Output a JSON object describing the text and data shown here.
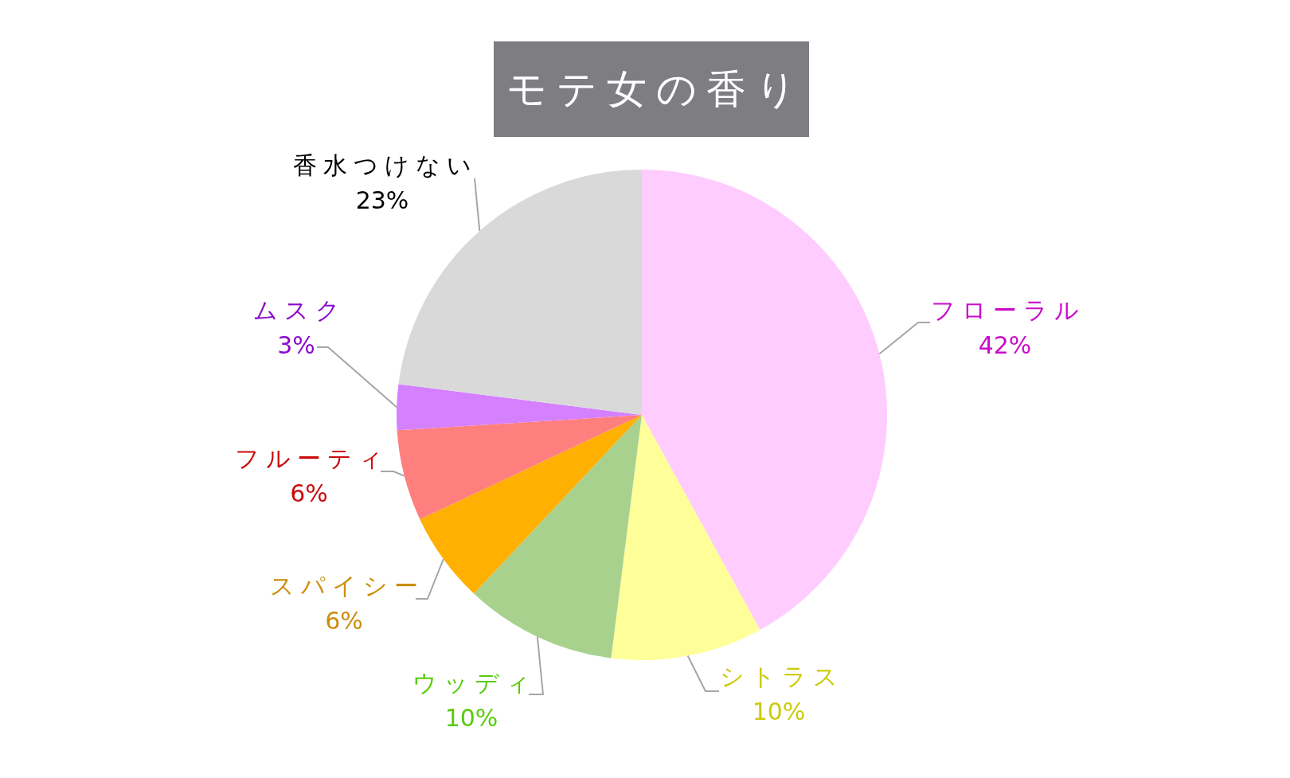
{
  "chart_data": {
    "type": "pie",
    "title": "モテ女の香り",
    "categories": [
      "フローラル",
      "シトラス",
      "ウッディ",
      "スパイシー",
      "フルーティ",
      "ムスク",
      "香水つけない"
    ],
    "values": [
      42,
      10,
      10,
      6,
      6,
      3,
      23
    ],
    "colors": [
      "#ffccff",
      "#ffff99",
      "#a9d18e",
      "#ffb000",
      "#ff7f7f",
      "#d580ff",
      "#d9d9d9"
    ],
    "value_labels": [
      "42%",
      "10%",
      "10%",
      "6%",
      "6%",
      "3%",
      "23%"
    ]
  }
}
